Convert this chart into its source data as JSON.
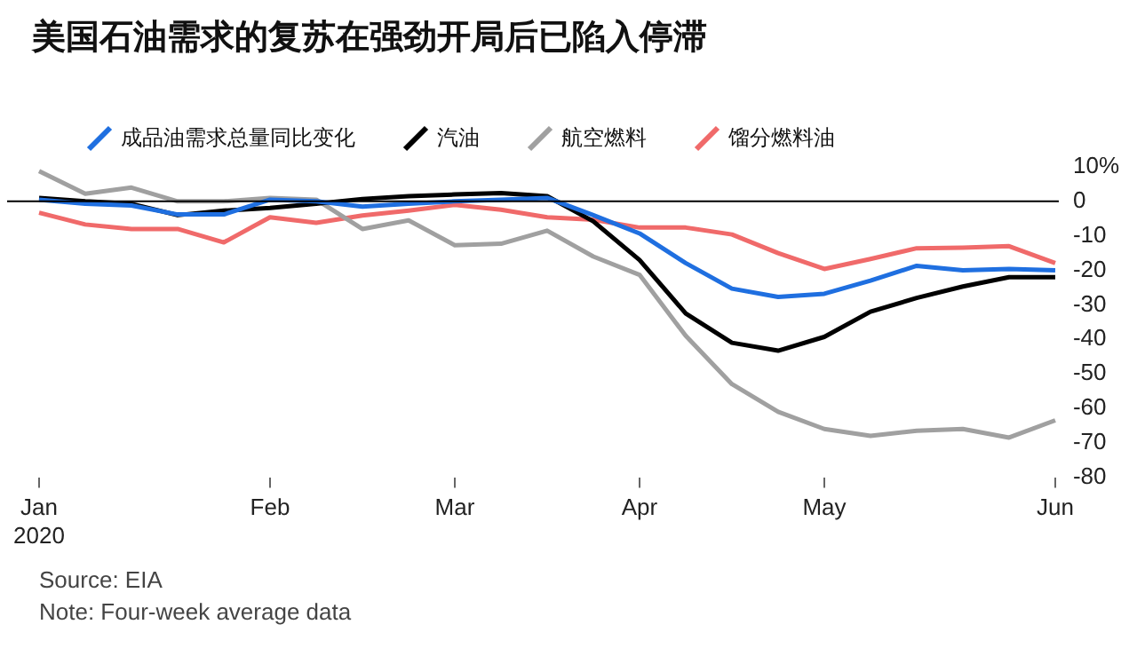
{
  "chart_data": {
    "type": "line",
    "title": "美国石油需求的复苏在强劲开局后已陷入停滞",
    "categories": [
      "Jan\n2020",
      null,
      null,
      null,
      null,
      "Feb",
      null,
      null,
      null,
      "Mar",
      null,
      null,
      null,
      "Apr",
      null,
      null,
      null,
      "May",
      null,
      null,
      null,
      null,
      "Jun"
    ],
    "series": [
      {
        "name": "成品油需求总量同比变化",
        "color": "#1f6fe0",
        "values": [
          0.5,
          -0.7,
          -1.2,
          -3.8,
          -3.8,
          0.5,
          0,
          -1.5,
          -0.7,
          0,
          0.5,
          1,
          -4,
          -9.3,
          -17.9,
          -25.3,
          -27.7,
          -26.8,
          -23,
          -18.7,
          -20,
          -19.6,
          -20
        ]
      },
      {
        "name": "汽油",
        "color": "#000000",
        "values": [
          1,
          0,
          -0.7,
          -4,
          -2.7,
          -1.9,
          -0.7,
          0.7,
          1.5,
          2,
          2.4,
          1.5,
          -5.8,
          -17,
          -32.5,
          -41,
          -43.3,
          -39.3,
          -32,
          -28,
          -24.7,
          -22,
          -22
        ]
      },
      {
        "name": "航空燃料",
        "color": "#a0a0a0",
        "values": [
          8.8,
          2.2,
          4,
          0,
          0,
          1,
          0.5,
          -8,
          -5.5,
          -12.7,
          -12.3,
          -8.5,
          -16,
          -21.3,
          -39,
          -53,
          -61,
          -66,
          -68,
          -66.5,
          -66,
          -68.5,
          -63.5
        ]
      },
      {
        "name": "馏分燃料油",
        "color": "#f06a6a",
        "values": [
          -3.3,
          -6.7,
          -8,
          -8,
          -11.9,
          -4.6,
          -6.2,
          -4.1,
          -2.7,
          -1,
          -2.4,
          -4.6,
          -5.3,
          -7.6,
          -7.6,
          -9.6,
          -15,
          -19.6,
          -16.7,
          -13.6,
          -13.4,
          -13,
          -17.9
        ]
      }
    ],
    "ylim": [
      -80,
      10
    ],
    "yticks": [
      {
        "value": 10,
        "label": "10%"
      },
      0,
      -10,
      -20,
      -30,
      -40,
      -50,
      -60,
      -70,
      -80
    ],
    "ref_lines": [
      {
        "axis": "y",
        "value": 0,
        "color": "#000000"
      }
    ],
    "legend": "top",
    "grid": false,
    "marker": "none",
    "line_style": "solid",
    "annotations": [
      "Source: EIA",
      "Note: Four-week average data"
    ]
  }
}
